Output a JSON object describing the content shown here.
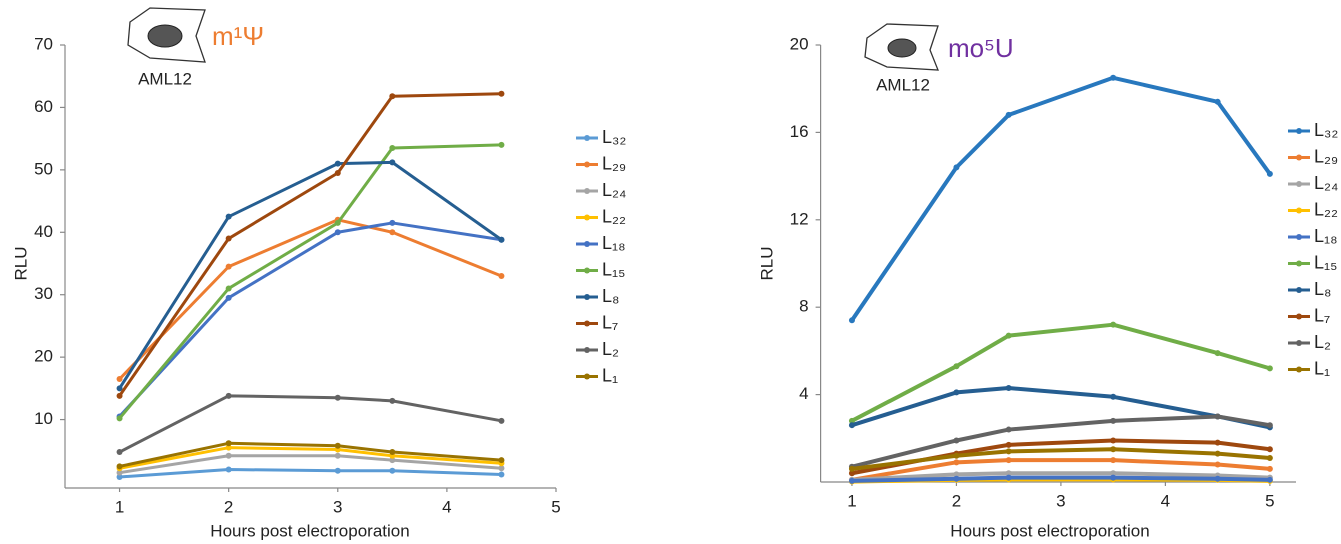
{
  "charts": [
    {
      "chart_data": {
        "type": "line",
        "title": "m¹Ψ",
        "title_color": "#ed7d31",
        "annotation": "AML12",
        "xlabel": "Hours post electroporation",
        "ylabel": "RLU",
        "xlim": [
          0.5,
          5
        ],
        "xticks": [
          1,
          2,
          3,
          4,
          5
        ],
        "ylim": [
          0,
          70
        ],
        "yticks": [
          10,
          20,
          30,
          40,
          50,
          60,
          70
        ],
        "x": [
          1,
          2,
          3,
          3.5,
          4.5
        ],
        "series": [
          {
            "name": "L₃₂",
            "color": "#5b9bd5",
            "values": [
              0.8,
              2,
              1.8,
              1.8,
              1.2
            ]
          },
          {
            "name": "L₂₉",
            "color": "#ed7d31",
            "values": [
              16.5,
              34.5,
              42,
              40,
              33
            ]
          },
          {
            "name": "L₂₄",
            "color": "#a5a5a5",
            "values": [
              1.5,
              4.2,
              4.2,
              3.5,
              2.2
            ]
          },
          {
            "name": "L₂₂",
            "color": "#ffc000",
            "values": [
              2.2,
              5.5,
              5.2,
              4.2,
              3
            ]
          },
          {
            "name": "L₁₈",
            "color": "#4472c4",
            "values": [
              10.5,
              29.5,
              40,
              41.5,
              38.8
            ]
          },
          {
            "name": "L₁₅",
            "color": "#70ad47",
            "values": [
              10.2,
              31,
              41.5,
              53.5,
              54
            ]
          },
          {
            "name": "L₈",
            "color": "#255e91",
            "values": [
              15,
              42.5,
              51,
              51.2,
              38.8
            ]
          },
          {
            "name": "L₇",
            "color": "#9e480e",
            "values": [
              13.8,
              39,
              49.5,
              61.8,
              62.2
            ]
          },
          {
            "name": "L₂",
            "color": "#636363",
            "values": [
              4.8,
              13.8,
              13.5,
              13,
              9.8
            ]
          },
          {
            "name": "L₁",
            "color": "#997300",
            "values": [
              2.5,
              6.2,
              5.8,
              4.8,
              3.5
            ]
          }
        ]
      }
    },
    {
      "chart_data": {
        "type": "line",
        "title": "mo⁵U",
        "title_color": "#7030a0",
        "annotation": "AML12",
        "xlabel": "Hours post electroporation",
        "ylabel": "RLU",
        "xlim": [
          0.7,
          5.25
        ],
        "xticks": [
          1,
          2,
          3,
          4,
          5
        ],
        "ylim": [
          0,
          20
        ],
        "yticks": [
          4,
          8,
          12,
          16,
          20
        ],
        "x": [
          1,
          2,
          2.5,
          3.5,
          4.5,
          5
        ],
        "series": [
          {
            "name": "L₃₂",
            "color": "#2878be",
            "values": [
              7.4,
              14.4,
              16.8,
              18.5,
              17.4,
              14.1
            ]
          },
          {
            "name": "L₂₉",
            "color": "#ed7d31",
            "values": [
              0.1,
              0.9,
              1.0,
              1.0,
              0.8,
              0.6
            ]
          },
          {
            "name": "L₂₄",
            "color": "#a5a5a5",
            "values": [
              0.1,
              0.35,
              0.4,
              0.4,
              0.3,
              0.2
            ]
          },
          {
            "name": "L₂₂",
            "color": "#ffc000",
            "values": [
              0.02,
              0.1,
              0.12,
              0.12,
              0.1,
              0.05
            ]
          },
          {
            "name": "L₁₈",
            "color": "#4472c4",
            "values": [
              0.05,
              0.15,
              0.2,
              0.2,
              0.15,
              0.1
            ]
          },
          {
            "name": "L₁₅",
            "color": "#70ad47",
            "values": [
              2.8,
              5.3,
              6.7,
              7.2,
              5.9,
              5.2
            ]
          },
          {
            "name": "L₈",
            "color": "#255e91",
            "values": [
              2.6,
              4.1,
              4.3,
              3.9,
              3.0,
              2.5
            ]
          },
          {
            "name": "L₇",
            "color": "#9e480e",
            "values": [
              0.4,
              1.3,
              1.7,
              1.9,
              1.8,
              1.5
            ]
          },
          {
            "name": "L₂",
            "color": "#636363",
            "values": [
              0.7,
              1.9,
              2.4,
              2.8,
              3.0,
              2.6
            ]
          },
          {
            "name": "L₁",
            "color": "#997300",
            "values": [
              0.6,
              1.2,
              1.4,
              1.5,
              1.3,
              1.1
            ]
          }
        ]
      }
    }
  ]
}
